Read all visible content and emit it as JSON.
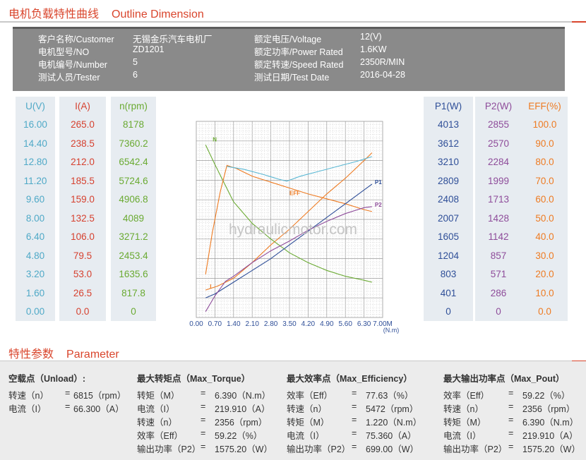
{
  "section1": {
    "title_cn": "电机负载特性曲线",
    "title_en": "Outline Dimension"
  },
  "info": [
    {
      "label": "客户名称/Customer",
      "value": "无锡金乐汽车电机厂",
      "label2": "额定电压/Voltage",
      "value2": "12(V)"
    },
    {
      "label": "电机型号/NO",
      "value": "ZD1201",
      "label2": "额定功率/Power Rated",
      "value2": "1.6KW"
    },
    {
      "label": "电机编号/Number",
      "value": "5",
      "label2": "额定转速/Speed Rated",
      "value2": "2350R/MIN"
    },
    {
      "label": "测试人员/Tester",
      "value": "6",
      "label2": "测试日期/Test Date",
      "value2": "2016-04-28"
    }
  ],
  "left_columns": [
    {
      "header": "U(V)",
      "color": "#4fa9c7",
      "values": [
        "16.00",
        "14.40",
        "12.80",
        "11.20",
        "9.60",
        "8.00",
        "6.40",
        "4.80",
        "3.20",
        "1.60",
        "0.00"
      ]
    },
    {
      "header": "I(A)",
      "color": "#d6412f",
      "values": [
        "265.0",
        "238.5",
        "212.0",
        "185.5",
        "159.0",
        "132.5",
        "106.0",
        "79.5",
        "53.0",
        "26.5",
        "0.0"
      ]
    },
    {
      "header": "n(rpm)",
      "color": "#6aaa32",
      "values": [
        "8178",
        "7360.2",
        "6542.4",
        "5724.6",
        "4906.8",
        "4089",
        "3271.2",
        "2453.4",
        "1635.6",
        "817.8",
        "0"
      ]
    }
  ],
  "right_columns": [
    {
      "header": "P1(W)",
      "color": "#2f4f98",
      "values": [
        "4013",
        "3612",
        "3210",
        "2809",
        "2408",
        "2007",
        "1605",
        "1204",
        "803",
        "401",
        "0"
      ]
    },
    {
      "header": "P2(W)",
      "color": "#8e4c9a",
      "values": [
        "2855",
        "2570",
        "2284",
        "1999",
        "1713",
        "1428",
        "1142",
        "857",
        "571",
        "286",
        "0"
      ]
    },
    {
      "header": "EFF(%)",
      "color": "#ee7b22",
      "values": [
        "100.0",
        "90.0",
        "80.0",
        "70.0",
        "60.0",
        "50.0",
        "40.0",
        "30.0",
        "20.0",
        "10.0",
        "0.0"
      ]
    }
  ],
  "watermark": "hydraulicmotor.com",
  "chart_data": {
    "type": "line",
    "xlabel": "(N.m)",
    "x_ticks": [
      "0.00",
      "0.70",
      "1.40",
      "2.10",
      "2.80",
      "3.50",
      "4.20",
      "4.90",
      "5.60",
      "6.30",
      "7.00M"
    ],
    "xlim": [
      0,
      7.0
    ],
    "ylim": [
      0,
      10
    ],
    "grid": true,
    "series": [
      {
        "name": "I",
        "color": "#ee7b22",
        "points": [
          [
            0.35,
            1.4
          ],
          [
            0.8,
            1.6
          ],
          [
            1.4,
            2.0
          ],
          [
            2.1,
            2.8
          ],
          [
            2.8,
            3.7
          ],
          [
            3.5,
            4.5
          ],
          [
            4.2,
            5.4
          ],
          [
            4.9,
            6.3
          ],
          [
            5.6,
            7.1
          ],
          [
            6.3,
            8.0
          ],
          [
            6.6,
            8.4
          ]
        ]
      },
      {
        "name": "N",
        "color": "#6aaa32",
        "points": [
          [
            0.35,
            8.8
          ],
          [
            0.7,
            7.8
          ],
          [
            1.4,
            5.9
          ],
          [
            2.1,
            4.8
          ],
          [
            2.8,
            4.0
          ],
          [
            3.5,
            3.3
          ],
          [
            4.2,
            2.8
          ],
          [
            4.9,
            2.4
          ],
          [
            5.6,
            2.1
          ],
          [
            6.3,
            1.9
          ],
          [
            6.6,
            1.8
          ]
        ]
      },
      {
        "name": "EFF",
        "color": "#ee7b22",
        "points": [
          [
            0.35,
            2.2
          ],
          [
            0.6,
            4.3
          ],
          [
            0.9,
            6.4
          ],
          [
            1.15,
            7.75
          ],
          [
            1.5,
            7.6
          ],
          [
            2.1,
            7.2
          ],
          [
            2.8,
            6.9
          ],
          [
            3.5,
            6.6
          ],
          [
            4.2,
            6.3
          ],
          [
            4.9,
            6.05
          ],
          [
            5.6,
            5.8
          ],
          [
            6.3,
            5.5
          ],
          [
            6.6,
            5.4
          ]
        ]
      },
      {
        "name": "P1",
        "color": "#2f4f98",
        "points": [
          [
            0.35,
            1.0
          ],
          [
            0.7,
            1.2
          ],
          [
            1.4,
            1.8
          ],
          [
            2.1,
            2.4
          ],
          [
            2.8,
            3.0
          ],
          [
            3.5,
            3.7
          ],
          [
            4.2,
            4.4
          ],
          [
            4.9,
            5.1
          ],
          [
            5.6,
            5.8
          ],
          [
            6.3,
            6.5
          ],
          [
            6.6,
            6.8
          ]
        ]
      },
      {
        "name": "P2",
        "color": "#8e4c9a",
        "points": [
          [
            0.35,
            0.3
          ],
          [
            0.7,
            1.1
          ],
          [
            1.1,
            1.85
          ],
          [
            1.4,
            2.1
          ],
          [
            2.1,
            2.8
          ],
          [
            2.8,
            3.4
          ],
          [
            3.5,
            3.9
          ],
          [
            4.2,
            4.45
          ],
          [
            4.9,
            4.9
          ],
          [
            5.6,
            5.3
          ],
          [
            6.3,
            5.6
          ],
          [
            6.6,
            5.65
          ]
        ]
      },
      {
        "name": "",
        "color": "#5bb8d4",
        "points": [
          [
            1.15,
            7.7
          ],
          [
            1.8,
            7.55
          ],
          [
            2.5,
            7.3
          ],
          [
            3.1,
            7.05
          ],
          [
            3.4,
            6.95
          ],
          [
            3.9,
            7.2
          ],
          [
            4.6,
            7.45
          ],
          [
            5.3,
            7.7
          ],
          [
            6.0,
            7.95
          ],
          [
            6.6,
            8.2
          ]
        ]
      }
    ]
  },
  "section2": {
    "title_cn": "特性参数",
    "title_en": "Parameter"
  },
  "params": [
    {
      "title": "空载点（Unload）:",
      "rows": [
        [
          "转速（n）",
          "=",
          "6815（rpm）"
        ],
        [
          "电流（I）",
          "=",
          "66.300（A）"
        ]
      ]
    },
    {
      "title": "最大转矩点（Max_Torque）",
      "rows": [
        [
          "转矩（M）",
          "=",
          "6.390（N.m）"
        ],
        [
          "电流（I）",
          "=",
          "219.910（A）"
        ],
        [
          "转速（n）",
          "=",
          "2356（rpm）"
        ],
        [
          "效率（Eff）",
          "=",
          "59.22（%）"
        ],
        [
          "输出功率（P2）",
          "=",
          "1575.20（W）"
        ]
      ]
    },
    {
      "title": "最大效率点（Max_Efficiency）",
      "rows": [
        [
          "效率（Eff）",
          "=",
          "77.63（%）"
        ],
        [
          "转速（n）",
          "=",
          "5472（rpm）"
        ],
        [
          "转矩（M）",
          "=",
          "1.220（N.m）"
        ],
        [
          "电流（I）",
          "=",
          "75.360（A）"
        ],
        [
          "输出功率（P2）",
          "=",
          "699.00（W）"
        ]
      ]
    },
    {
      "title": "最大输出功率点（Max_Pout）",
      "rows": [
        [
          "效率（Eff）",
          "=",
          "59.22（%）"
        ],
        [
          "转速（n）",
          "=",
          "2356（rpm）"
        ],
        [
          "转矩（M）",
          "=",
          "6.390（N.m）"
        ],
        [
          "电流（I）",
          "=",
          "219.910（A）"
        ],
        [
          "输出功率（P2）",
          "=",
          "1575.20（W）"
        ]
      ]
    }
  ]
}
